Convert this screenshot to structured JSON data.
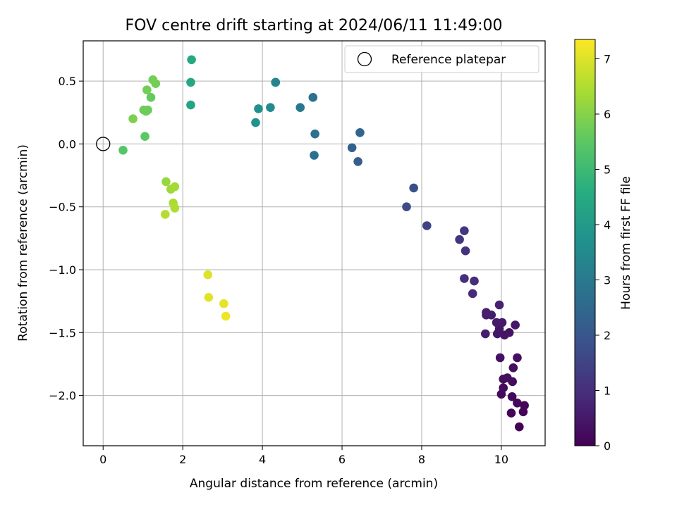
{
  "chart_data": {
    "type": "scatter",
    "title": "FOV centre drift starting at 2024/06/11 11:49:00",
    "xlabel": "Angular distance from reference (arcmin)",
    "ylabel": "Rotation from reference (arcmin)",
    "xlim": [
      -0.5,
      11.1
    ],
    "ylim": [
      -2.4,
      0.82
    ],
    "xticks": [
      0,
      2,
      4,
      6,
      8,
      10
    ],
    "yticks": [
      -2.0,
      -1.5,
      -1.0,
      -0.5,
      0.0,
      0.5
    ],
    "xtick_labels": [
      "0",
      "2",
      "4",
      "6",
      "8",
      "10"
    ],
    "ytick_labels": [
      "−2.0",
      "−1.5",
      "−1.0",
      "−0.5",
      "0.0",
      "0.5"
    ],
    "grid": true,
    "legend": {
      "placement": "top-right",
      "entries": [
        {
          "label": "Reference platepar",
          "marker": "open-circle"
        }
      ]
    },
    "reference_point": {
      "x": 0,
      "y": 0
    },
    "colorbar": {
      "label": "Hours from first FF file",
      "range": [
        0,
        7.35
      ],
      "ticks": [
        0,
        1,
        2,
        3,
        4,
        5,
        6,
        7
      ],
      "tick_labels": [
        "0",
        "1",
        "2",
        "3",
        "4",
        "5",
        "6",
        "7"
      ],
      "colormap": "viridis"
    },
    "points": [
      {
        "x": 10.45,
        "y": -2.25,
        "t": 0.02
      },
      {
        "x": 10.55,
        "y": -2.13,
        "t": 0.05
      },
      {
        "x": 10.25,
        "y": -2.14,
        "t": 0.08
      },
      {
        "x": 10.58,
        "y": -2.08,
        "t": 0.1
      },
      {
        "x": 10.4,
        "y": -2.06,
        "t": 0.12
      },
      {
        "x": 10.27,
        "y": -2.01,
        "t": 0.15
      },
      {
        "x": 10.0,
        "y": -1.99,
        "t": 0.18
      },
      {
        "x": 10.05,
        "y": -1.94,
        "t": 0.2
      },
      {
        "x": 10.28,
        "y": -1.89,
        "t": 0.22
      },
      {
        "x": 10.05,
        "y": -1.87,
        "t": 0.25
      },
      {
        "x": 10.15,
        "y": -1.86,
        "t": 0.27
      },
      {
        "x": 10.3,
        "y": -1.78,
        "t": 0.3
      },
      {
        "x": 10.4,
        "y": -1.7,
        "t": 0.32
      },
      {
        "x": 9.97,
        "y": -1.7,
        "t": 0.35
      },
      {
        "x": 10.2,
        "y": -1.5,
        "t": 0.38
      },
      {
        "x": 10.08,
        "y": -1.52,
        "t": 0.4
      },
      {
        "x": 9.9,
        "y": -1.51,
        "t": 0.43
      },
      {
        "x": 9.95,
        "y": -1.47,
        "t": 0.45
      },
      {
        "x": 10.35,
        "y": -1.44,
        "t": 0.48
      },
      {
        "x": 10.02,
        "y": -1.42,
        "t": 0.5
      },
      {
        "x": 9.88,
        "y": -1.42,
        "t": 0.52
      },
      {
        "x": 9.75,
        "y": -1.36,
        "t": 0.55
      },
      {
        "x": 9.6,
        "y": -1.51,
        "t": 0.6
      },
      {
        "x": 9.62,
        "y": -1.36,
        "t": 0.62
      },
      {
        "x": 9.62,
        "y": -1.34,
        "t": 0.65
      },
      {
        "x": 9.95,
        "y": -1.28,
        "t": 0.7
      },
      {
        "x": 9.28,
        "y": -1.19,
        "t": 0.9
      },
      {
        "x": 9.32,
        "y": -1.09,
        "t": 0.95
      },
      {
        "x": 9.07,
        "y": -1.07,
        "t": 1.0
      },
      {
        "x": 9.1,
        "y": -0.85,
        "t": 1.1
      },
      {
        "x": 8.95,
        "y": -0.76,
        "t": 1.15
      },
      {
        "x": 9.07,
        "y": -0.69,
        "t": 1.2
      },
      {
        "x": 8.13,
        "y": -0.65,
        "t": 1.5
      },
      {
        "x": 7.62,
        "y": -0.5,
        "t": 1.7
      },
      {
        "x": 7.8,
        "y": -0.35,
        "t": 1.8
      },
      {
        "x": 6.4,
        "y": -0.14,
        "t": 2.2
      },
      {
        "x": 6.25,
        "y": -0.03,
        "t": 2.3
      },
      {
        "x": 6.45,
        "y": 0.09,
        "t": 2.4
      },
      {
        "x": 5.3,
        "y": -0.09,
        "t": 2.7
      },
      {
        "x": 5.32,
        "y": 0.08,
        "t": 2.75
      },
      {
        "x": 5.27,
        "y": 0.37,
        "t": 2.8
      },
      {
        "x": 4.95,
        "y": 0.29,
        "t": 3.0
      },
      {
        "x": 4.33,
        "y": 0.49,
        "t": 3.3
      },
      {
        "x": 4.33,
        "y": 0.49,
        "t": 3.35
      },
      {
        "x": 4.2,
        "y": 0.29,
        "t": 3.5
      },
      {
        "x": 3.9,
        "y": 0.28,
        "t": 3.7
      },
      {
        "x": 3.83,
        "y": 0.17,
        "t": 3.75
      },
      {
        "x": 2.2,
        "y": 0.31,
        "t": 4.3
      },
      {
        "x": 2.2,
        "y": 0.49,
        "t": 4.4
      },
      {
        "x": 2.22,
        "y": 0.67,
        "t": 4.45
      },
      {
        "x": 0.5,
        "y": -0.05,
        "t": 5.4
      },
      {
        "x": 1.05,
        "y": 0.06,
        "t": 5.5
      },
      {
        "x": 1.2,
        "y": 0.37,
        "t": 5.6
      },
      {
        "x": 1.12,
        "y": 0.27,
        "t": 5.65
      },
      {
        "x": 1.02,
        "y": 0.27,
        "t": 5.7
      },
      {
        "x": 1.08,
        "y": 0.26,
        "t": 5.72
      },
      {
        "x": 1.1,
        "y": 0.43,
        "t": 5.75
      },
      {
        "x": 1.25,
        "y": 0.51,
        "t": 5.78
      },
      {
        "x": 1.32,
        "y": 0.48,
        "t": 5.8
      },
      {
        "x": 0.75,
        "y": 0.2,
        "t": 5.9
      },
      {
        "x": 1.58,
        "y": -0.3,
        "t": 6.2
      },
      {
        "x": 1.7,
        "y": -0.36,
        "t": 6.3
      },
      {
        "x": 1.8,
        "y": -0.34,
        "t": 6.35
      },
      {
        "x": 1.76,
        "y": -0.47,
        "t": 6.45
      },
      {
        "x": 1.8,
        "y": -0.51,
        "t": 6.5
      },
      {
        "x": 1.56,
        "y": -0.56,
        "t": 6.55
      },
      {
        "x": 2.63,
        "y": -1.04,
        "t": 7.0
      },
      {
        "x": 2.65,
        "y": -1.22,
        "t": 7.05
      },
      {
        "x": 3.03,
        "y": -1.27,
        "t": 7.1
      },
      {
        "x": 3.08,
        "y": -1.37,
        "t": 7.2
      }
    ]
  }
}
